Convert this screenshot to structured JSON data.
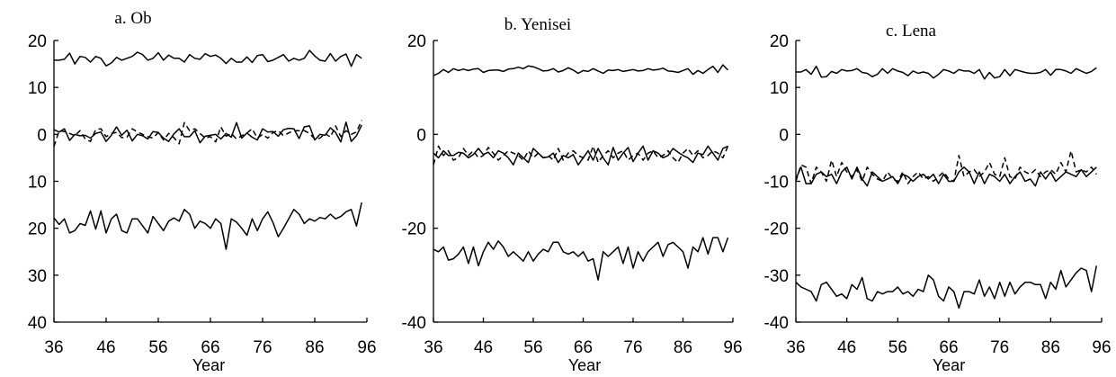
{
  "chart_data": [
    {
      "type": "line",
      "title": "a. Ob",
      "xlabel": "Year",
      "ylabel": "",
      "xlim": [
        36,
        96
      ],
      "ylim": [
        -40,
        20
      ],
      "x_ticks": [
        36,
        46,
        56,
        66,
        76,
        86,
        96
      ],
      "y_ticks": [
        20,
        10,
        0,
        -10,
        -20,
        -30,
        -40
      ],
      "y_tick_labels": [
        "20",
        "10",
        "0",
        "10",
        "20",
        "30",
        "40"
      ],
      "x": [
        36,
        37,
        38,
        39,
        40,
        41,
        42,
        43,
        44,
        45,
        46,
        47,
        48,
        49,
        50,
        51,
        52,
        53,
        54,
        55,
        56,
        57,
        58,
        59,
        60,
        61,
        62,
        63,
        64,
        65,
        66,
        67,
        68,
        69,
        70,
        71,
        72,
        73,
        74,
        75,
        76,
        77,
        78,
        79,
        80,
        81,
        82,
        83,
        84,
        85,
        86,
        87,
        88,
        89,
        90,
        91,
        92,
        93,
        94,
        95
      ],
      "series": [
        {
          "style": "solid",
          "values": [
            15.8,
            15.8,
            16.0,
            17.3,
            15.0,
            16.6,
            16.4,
            15.4,
            16.6,
            16.2,
            14.6,
            15.2,
            16.4,
            15.8,
            16.2,
            16.6,
            17.5,
            17.0,
            15.8,
            16.2,
            17.4,
            15.8,
            16.9,
            16.2,
            16.2,
            15.4,
            17.0,
            16.2,
            16.0,
            17.2,
            16.6,
            16.9,
            16.2,
            15.1,
            16.2,
            15.4,
            15.4,
            16.5,
            15.3,
            16.8,
            17.0,
            15.5,
            15.8,
            16.4,
            17.0,
            15.6,
            16.2,
            15.8,
            16.2,
            17.9,
            16.7,
            15.8,
            15.6,
            17.2,
            15.6,
            16.6,
            17.1,
            14.5,
            17.0,
            16.2
          ]
        },
        {
          "style": "solid",
          "values": [
            1.0,
            0.5,
            1.2,
            -1.3,
            0.0,
            -0.3,
            -0.2,
            -0.8,
            0.2,
            0.5,
            -1.5,
            -0.2,
            1.6,
            -0.2,
            0.9,
            -1.4,
            0.0,
            -0.3,
            -1.0,
            0.6,
            0.4,
            -0.8,
            -1.5,
            0.1,
            1.2,
            -0.5,
            -0.5,
            0.8,
            -1.8,
            -0.4,
            -0.2,
            0.0,
            -1.0,
            0.2,
            -0.6,
            2.5,
            -0.8,
            0.3,
            -0.6,
            -1.2,
            1.2,
            0.5,
            0.6,
            -0.4,
            1.0,
            1.3,
            1.2,
            -0.9,
            1.6,
            1.8,
            -1.2,
            0.0,
            -0.2,
            1.4,
            0.4,
            -1.6,
            2.6,
            -1.5,
            -0.3,
            2.0
          ]
        },
        {
          "style": "dash",
          "values": [
            -2.6,
            0.8,
            0.6,
            0.2,
            -0.3,
            0.8,
            -1.0,
            -1.5,
            1.0,
            1.2,
            -0.5,
            0.2,
            0.4,
            -0.7,
            -0.6,
            1.2,
            0.5,
            0.0,
            -0.5,
            -0.8,
            0.4,
            -1.2,
            0.2,
            -0.7,
            -2.0,
            2.5,
            0.8,
            1.2,
            0.2,
            -0.8,
            -0.5,
            -1.6,
            1.6,
            -0.4,
            0.2,
            -1.0,
            -0.3,
            0.3,
            1.2,
            -0.8,
            0.0,
            -0.8,
            0.4,
            0.8,
            -0.3,
            0.3,
            0.8,
            0.8,
            0.8,
            0.2,
            -1.0,
            -0.8,
            0.2,
            -0.6,
            1.8,
            -0.5,
            0.8,
            0.0,
            0.5,
            3.0
          ]
        },
        {
          "style": "solid",
          "values": [
            -17.8,
            -19.2,
            -18.0,
            -21.0,
            -20.5,
            -19.0,
            -19.4,
            -16.3,
            -20.2,
            -16.3,
            -21.0,
            -18.0,
            -17.0,
            -20.5,
            -21.0,
            -18.0,
            -18.0,
            -19.5,
            -21.0,
            -17.5,
            -19.0,
            -20.5,
            -18.5,
            -17.8,
            -18.5,
            -16.0,
            -17.0,
            -20.0,
            -18.5,
            -19.0,
            -20.0,
            -18.0,
            -19.0,
            -24.5,
            -18.0,
            -18.7,
            -20.0,
            -21.5,
            -18.0,
            -20.5,
            -18.0,
            -16.5,
            -18.8,
            -21.8,
            -20.0,
            -18.0,
            -16.0,
            -17.0,
            -19.0,
            -18.0,
            -18.5,
            -17.7,
            -18.0,
            -17.0,
            -18.0,
            -17.5,
            -16.5,
            -16.0,
            -19.5,
            -14.5
          ]
        }
      ]
    },
    {
      "type": "line",
      "title": "b. Yenisei",
      "xlabel": "Year",
      "ylabel": "",
      "xlim": [
        36,
        96
      ],
      "ylim": [
        -40,
        20
      ],
      "x_ticks": [
        36,
        46,
        56,
        66,
        76,
        86,
        96
      ],
      "y_ticks": [
        20,
        0,
        -20,
        -40
      ],
      "y_tick_labels": [
        "20",
        "0",
        "-20",
        "-40"
      ],
      "x": [
        36,
        37,
        38,
        39,
        40,
        41,
        42,
        43,
        44,
        45,
        46,
        47,
        48,
        49,
        50,
        51,
        52,
        53,
        54,
        55,
        56,
        57,
        58,
        59,
        60,
        61,
        62,
        63,
        64,
        65,
        66,
        67,
        68,
        69,
        70,
        71,
        72,
        73,
        74,
        75,
        76,
        77,
        78,
        79,
        80,
        81,
        82,
        83,
        84,
        85,
        86,
        87,
        88,
        89,
        90,
        91,
        92,
        93,
        94,
        95
      ],
      "series": [
        {
          "style": "solid",
          "values": [
            12.5,
            13.0,
            13.8,
            13.2,
            14.0,
            13.6,
            13.9,
            13.6,
            13.9,
            14.0,
            13.2,
            13.6,
            13.7,
            13.7,
            13.4,
            13.9,
            14.0,
            14.3,
            14.0,
            14.6,
            14.4,
            14.0,
            13.5,
            13.6,
            14.0,
            13.3,
            13.6,
            14.2,
            13.7,
            13.0,
            13.6,
            13.4,
            14.0,
            13.5,
            13.0,
            13.7,
            13.6,
            13.8,
            13.4,
            13.6,
            13.8,
            13.5,
            13.6,
            14.0,
            13.7,
            13.8,
            14.1,
            13.5,
            13.4,
            13.2,
            13.6,
            14.0,
            12.8,
            13.6,
            13.0,
            13.8,
            14.5,
            13.2,
            14.8,
            13.7
          ]
        },
        {
          "style": "solid",
          "values": [
            -4.0,
            -5.0,
            -3.5,
            -4.5,
            -4.5,
            -3.8,
            -4.0,
            -5.0,
            -4.3,
            -3.0,
            -4.3,
            -3.8,
            -5.0,
            -3.5,
            -4.0,
            -5.0,
            -6.5,
            -4.0,
            -5.0,
            -6.0,
            -3.0,
            -4.0,
            -5.0,
            -4.8,
            -4.0,
            -6.0,
            -4.5,
            -5.0,
            -4.3,
            -6.5,
            -5.0,
            -3.5,
            -5.5,
            -3.0,
            -5.0,
            -6.5,
            -2.8,
            -5.5,
            -4.0,
            -2.8,
            -5.8,
            -4.0,
            -2.5,
            -5.5,
            -3.5,
            -4.0,
            -5.0,
            -4.5,
            -3.0,
            -3.8,
            -4.5,
            -5.0,
            -6.0,
            -4.0,
            -4.3,
            -2.5,
            -4.0,
            -5.5,
            -3.0,
            -2.5
          ]
        },
        {
          "style": "dash",
          "values": [
            -6.5,
            -2.5,
            -4.5,
            -3.5,
            -5.5,
            -5.0,
            -3.0,
            -4.5,
            -3.5,
            -5.0,
            -4.5,
            -2.8,
            -4.0,
            -5.5,
            -4.5,
            -3.5,
            -4.0,
            -4.5,
            -5.5,
            -3.5,
            -5.0,
            -4.0,
            -5.0,
            -4.5,
            -5.5,
            -3.0,
            -5.5,
            -4.0,
            -3.5,
            -4.5,
            -5.0,
            -5.5,
            -2.5,
            -6.0,
            -4.5,
            -3.5,
            -5.0,
            -4.0,
            -3.5,
            -5.5,
            -4.5,
            -4.0,
            -5.5,
            -4.0,
            -3.5,
            -5.0,
            -4.5,
            -3.5,
            -5.0,
            -6.0,
            -4.0,
            -3.0,
            -4.5,
            -3.5,
            -5.0,
            -4.5,
            -3.5,
            -4.0,
            -5.0,
            -2.5
          ]
        },
        {
          "style": "solid",
          "values": [
            -24.5,
            -25.0,
            -24.0,
            -26.8,
            -26.5,
            -25.5,
            -24.0,
            -27.5,
            -24.0,
            -28.0,
            -25.0,
            -23.0,
            -24.5,
            -22.7,
            -24.0,
            -26.0,
            -25.0,
            -26.0,
            -27.0,
            -25.0,
            -27.0,
            -25.5,
            -24.5,
            -25.0,
            -23.0,
            -23.0,
            -25.0,
            -25.5,
            -25.0,
            -26.0,
            -25.0,
            -27.0,
            -26.5,
            -31.0,
            -25.0,
            -26.0,
            -25.0,
            -24.0,
            -27.5,
            -24.0,
            -28.5,
            -25.0,
            -27.0,
            -25.0,
            -24.0,
            -23.0,
            -26.0,
            -23.5,
            -23.0,
            -24.0,
            -25.0,
            -28.5,
            -24.0,
            -25.0,
            -22.0,
            -25.5,
            -22.0,
            -22.0,
            -25.0,
            -22.0
          ]
        }
      ]
    },
    {
      "type": "line",
      "title": "c. Lena",
      "xlabel": "Year",
      "ylabel": "",
      "xlim": [
        36,
        96
      ],
      "ylim": [
        -40,
        20
      ],
      "x_ticks": [
        36,
        46,
        56,
        66,
        76,
        86,
        96
      ],
      "y_ticks": [
        20,
        10,
        0,
        -10,
        -20,
        -30,
        -40
      ],
      "y_tick_labels": [
        "20",
        "10",
        "0",
        "-10",
        "-20",
        "-30",
        "-40"
      ],
      "x": [
        36,
        37,
        38,
        39,
        40,
        41,
        42,
        43,
        44,
        45,
        46,
        47,
        48,
        49,
        50,
        51,
        52,
        53,
        54,
        55,
        56,
        57,
        58,
        59,
        60,
        61,
        62,
        63,
        64,
        65,
        66,
        67,
        68,
        69,
        70,
        71,
        72,
        73,
        74,
        75,
        76,
        77,
        78,
        79,
        80,
        81,
        82,
        83,
        84,
        85,
        86,
        87,
        88,
        89,
        90,
        91,
        92,
        93,
        94,
        95
      ],
      "series": [
        {
          "style": "solid",
          "values": [
            13.3,
            13.3,
            13.8,
            12.8,
            14.5,
            12.2,
            12.3,
            13.4,
            13.0,
            13.8,
            13.5,
            13.6,
            14.0,
            13.2,
            13.0,
            12.3,
            12.8,
            14.0,
            13.0,
            14.0,
            13.5,
            13.2,
            12.5,
            13.5,
            13.0,
            13.3,
            13.0,
            12.0,
            12.8,
            13.8,
            13.5,
            13.0,
            13.8,
            13.5,
            13.5,
            13.0,
            13.8,
            11.8,
            13.2,
            12.0,
            12.3,
            13.8,
            12.5,
            13.8,
            13.5,
            13.2,
            13.0,
            13.0,
            13.2,
            13.8,
            12.6,
            13.8,
            13.8,
            13.5,
            13.0,
            14.0,
            13.5,
            13.0,
            13.4,
            14.2
          ]
        },
        {
          "style": "solid",
          "values": [
            -9.5,
            -7.0,
            -10.5,
            -10.5,
            -8.5,
            -8.0,
            -9.0,
            -8.5,
            -10.5,
            -8.0,
            -7.0,
            -9.5,
            -7.0,
            -9.5,
            -11.0,
            -8.0,
            -9.0,
            -10.0,
            -9.5,
            -9.0,
            -10.5,
            -8.5,
            -9.0,
            -10.0,
            -9.0,
            -8.5,
            -9.5,
            -8.5,
            -10.5,
            -8.5,
            -10.0,
            -10.0,
            -8.0,
            -7.0,
            -8.0,
            -10.5,
            -8.0,
            -10.5,
            -8.5,
            -9.0,
            -10.0,
            -8.5,
            -10.5,
            -9.0,
            -8.0,
            -10.0,
            -9.5,
            -11.0,
            -8.0,
            -9.5,
            -8.0,
            -10.0,
            -9.0,
            -8.0,
            -8.5,
            -9.0,
            -7.5,
            -9.0,
            -8.0,
            -7.0
          ]
        },
        {
          "style": "dash",
          "values": [
            -10.0,
            -6.5,
            -7.0,
            -10.5,
            -7.0,
            -8.0,
            -10.0,
            -5.5,
            -9.0,
            -6.0,
            -8.0,
            -9.0,
            -7.5,
            -10.0,
            -7.0,
            -8.5,
            -9.5,
            -10.0,
            -8.0,
            -9.5,
            -10.0,
            -8.0,
            -10.5,
            -9.0,
            -8.0,
            -9.5,
            -9.0,
            -10.0,
            -9.0,
            -8.0,
            -9.5,
            -10.0,
            -4.5,
            -9.0,
            -8.0,
            -7.5,
            -9.0,
            -8.0,
            -6.0,
            -8.5,
            -9.0,
            -5.0,
            -9.0,
            -9.5,
            -7.0,
            -8.0,
            -8.5,
            -7.5,
            -9.0,
            -8.0,
            -7.5,
            -8.5,
            -6.0,
            -8.0,
            -3.5,
            -8.0,
            -7.5,
            -8.0,
            -7.0,
            -8.5
          ]
        },
        {
          "style": "solid",
          "values": [
            -31.5,
            -32.5,
            -33.0,
            -33.5,
            -35.5,
            -32.0,
            -31.5,
            -33.0,
            -34.5,
            -34.0,
            -35.0,
            -32.0,
            -33.0,
            -30.5,
            -35.0,
            -35.5,
            -33.5,
            -34.0,
            -33.5,
            -33.5,
            -32.5,
            -34.0,
            -33.5,
            -34.5,
            -33.0,
            -33.5,
            -30.0,
            -31.0,
            -34.5,
            -35.5,
            -32.5,
            -33.5,
            -37.0,
            -33.5,
            -33.5,
            -34.0,
            -31.0,
            -34.5,
            -32.5,
            -35.0,
            -31.5,
            -34.5,
            -31.5,
            -34.0,
            -32.5,
            -31.5,
            -31.5,
            -32.0,
            -32.0,
            -35.0,
            -31.5,
            -33.0,
            -29.0,
            -32.5,
            -31.0,
            -29.5,
            -28.5,
            -29.0,
            -33.5,
            -28.0
          ]
        }
      ]
    }
  ]
}
